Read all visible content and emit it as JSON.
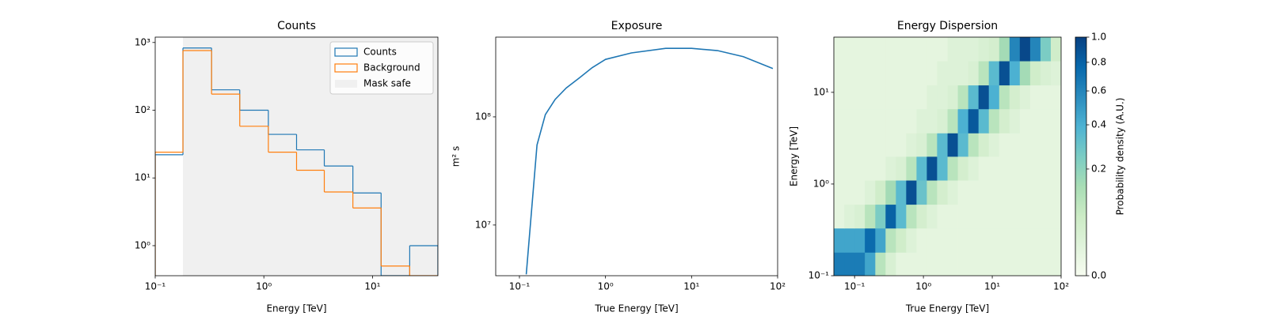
{
  "chart_data": [
    {
      "type": "histogram",
      "title": "Counts",
      "xlabel": "Energy [TeV]",
      "xscale": "log",
      "yscale": "log",
      "bins": [
        0.1,
        0.18,
        0.33,
        0.6,
        1.1,
        2,
        3.6,
        6.6,
        12,
        22,
        40
      ],
      "series": [
        {
          "name": "Counts",
          "color": "#1f77b4",
          "values": [
            22,
            830,
            200,
            100,
            44,
            26,
            15,
            6,
            0,
            1
          ]
        },
        {
          "name": "Background",
          "color": "#ff7f0e",
          "values": [
            24,
            760,
            173,
            58,
            24,
            13,
            6.2,
            3.6,
            0.5,
            0
          ]
        }
      ],
      "mask_safe": {
        "name": "Mask safe",
        "color": "#f0f0f0",
        "range": [
          0.18,
          40
        ]
      },
      "xlim": [
        0.1,
        40
      ],
      "ylim": [
        0.36,
        1200
      ],
      "xticks": [
        {
          "value": 0.1,
          "label": "10⁻¹"
        },
        {
          "value": 1,
          "label": "10⁰"
        },
        {
          "value": 10,
          "label": "10¹"
        }
      ],
      "yticks": [
        {
          "value": 1,
          "label": "10⁰"
        },
        {
          "value": 10,
          "label": "10¹"
        },
        {
          "value": 100,
          "label": "10²"
        },
        {
          "value": 1000,
          "label": "10³"
        }
      ],
      "legend": "upper right"
    },
    {
      "type": "line",
      "title": "Exposure",
      "xlabel": "True Energy [TeV]",
      "ylabel": "m² s",
      "xscale": "log",
      "yscale": "log",
      "color": "#1f77b4",
      "x": [
        0.12,
        0.16,
        0.2,
        0.26,
        0.35,
        0.5,
        0.7,
        1,
        2,
        5,
        10,
        20,
        40,
        88
      ],
      "values": [
        3500000,
        55000000,
        105000000,
        145000000,
        185000000,
        230000000,
        285000000,
        340000000,
        390000000,
        430000000,
        430000000,
        410000000,
        360000000,
        280000000
      ],
      "xlim": [
        0.053,
        100
      ],
      "ylim": [
        3400000,
        546000000
      ],
      "xticks": [
        {
          "value": 0.1,
          "label": "10⁻¹"
        },
        {
          "value": 1,
          "label": "10⁰"
        },
        {
          "value": 10,
          "label": "10¹"
        },
        {
          "value": 100,
          "label": "10²"
        }
      ],
      "yticks": [
        {
          "value": 10000000,
          "label": "10⁷"
        },
        {
          "value": 100000000,
          "label": "10⁸"
        }
      ]
    },
    {
      "type": "heatmap",
      "title": "Energy Dispersion",
      "xlabel": "True Energy [TeV]",
      "ylabel": "Energy [TeV]",
      "xscale": "log",
      "yscale": "log",
      "colormap": "GnBu",
      "norm": {
        "type": "power",
        "gamma": 0.5
      },
      "x_edges": [
        0.0501,
        0.0708,
        0.1,
        0.141,
        0.2,
        0.282,
        0.398,
        0.562,
        0.794,
        1.12,
        1.58,
        2.24,
        3.16,
        4.47,
        6.31,
        8.91,
        12.6,
        17.8,
        25.1,
        35.5,
        50.1,
        70.8,
        100
      ],
      "y_edges": [
        0.1,
        0.18,
        0.33,
        0.6,
        1.1,
        2,
        3.6,
        6.6,
        12,
        22,
        40
      ],
      "z": [
        [
          0.65,
          0.65,
          0.65,
          0.45,
          0.1,
          0.03,
          0.01,
          0.01,
          0.01,
          0.01,
          0.01,
          0.01,
          0.01,
          0.01,
          0.01,
          0.01,
          0.01,
          0.01,
          0.01,
          0.01,
          0.01,
          0.01
        ],
        [
          0.45,
          0.45,
          0.45,
          0.75,
          0.45,
          0.1,
          0.05,
          0.02,
          0.01,
          0.01,
          0.01,
          0.01,
          0.01,
          0.01,
          0.01,
          0.01,
          0.01,
          0.01,
          0.01,
          0.01,
          0.01,
          0.01
        ],
        [
          0.01,
          0.02,
          0.03,
          0.1,
          0.25,
          0.8,
          0.35,
          0.1,
          0.04,
          0.02,
          0.01,
          0.01,
          0.01,
          0.01,
          0.01,
          0.01,
          0.01,
          0.01,
          0.01,
          0.01,
          0.01,
          0.01
        ],
        [
          0.01,
          0.01,
          0.01,
          0.02,
          0.05,
          0.15,
          0.35,
          0.9,
          0.3,
          0.1,
          0.04,
          0.02,
          0.01,
          0.01,
          0.01,
          0.01,
          0.01,
          0.01,
          0.01,
          0.01,
          0.01,
          0.01
        ],
        [
          0.01,
          0.01,
          0.01,
          0.01,
          0.01,
          0.02,
          0.03,
          0.1,
          0.35,
          0.9,
          0.35,
          0.1,
          0.04,
          0.02,
          0.01,
          0.01,
          0.01,
          0.01,
          0.01,
          0.01,
          0.01,
          0.01
        ],
        [
          0.01,
          0.01,
          0.01,
          0.01,
          0.01,
          0.01,
          0.01,
          0.02,
          0.03,
          0.1,
          0.35,
          0.9,
          0.35,
          0.1,
          0.04,
          0.02,
          0.01,
          0.01,
          0.01,
          0.01,
          0.01,
          0.01
        ],
        [
          0.01,
          0.01,
          0.01,
          0.01,
          0.01,
          0.01,
          0.01,
          0.01,
          0.02,
          0.02,
          0.03,
          0.1,
          0.4,
          0.85,
          0.35,
          0.1,
          0.04,
          0.02,
          0.01,
          0.01,
          0.01,
          0.01
        ],
        [
          0.01,
          0.01,
          0.01,
          0.01,
          0.01,
          0.01,
          0.01,
          0.01,
          0.01,
          0.02,
          0.02,
          0.03,
          0.1,
          0.35,
          0.9,
          0.4,
          0.1,
          0.04,
          0.02,
          0.01,
          0.01,
          0.01
        ],
        [
          0.01,
          0.01,
          0.01,
          0.01,
          0.01,
          0.01,
          0.01,
          0.01,
          0.01,
          0.01,
          0.02,
          0.02,
          0.02,
          0.03,
          0.1,
          0.35,
          0.9,
          0.4,
          0.15,
          0.05,
          0.03,
          0.02
        ],
        [
          0.01,
          0.01,
          0.01,
          0.01,
          0.01,
          0.01,
          0.01,
          0.01,
          0.01,
          0.01,
          0.01,
          0.02,
          0.02,
          0.02,
          0.03,
          0.04,
          0.15,
          0.6,
          0.95,
          0.6,
          0.25,
          0.05
        ]
      ],
      "xlim": [
        0.05,
        100
      ],
      "ylim": [
        0.1,
        40
      ],
      "xticks": [
        {
          "value": 0.1,
          "label": "10⁻¹"
        },
        {
          "value": 1,
          "label": "10⁰"
        },
        {
          "value": 10,
          "label": "10¹"
        },
        {
          "value": 100,
          "label": "10²"
        }
      ],
      "yticks": [
        {
          "value": 0.1,
          "label": "10⁻¹"
        },
        {
          "value": 1,
          "label": "10⁰"
        },
        {
          "value": 10,
          "label": "10¹"
        }
      ],
      "colorbar": {
        "label": "Probability density (A.U.)",
        "lim": [
          0,
          1
        ],
        "ticks": [
          {
            "value": 0,
            "label": "0.0"
          },
          0.2,
          0.4,
          0.6,
          0.8,
          {
            "value": 1,
            "label": "1.0"
          }
        ]
      }
    }
  ]
}
